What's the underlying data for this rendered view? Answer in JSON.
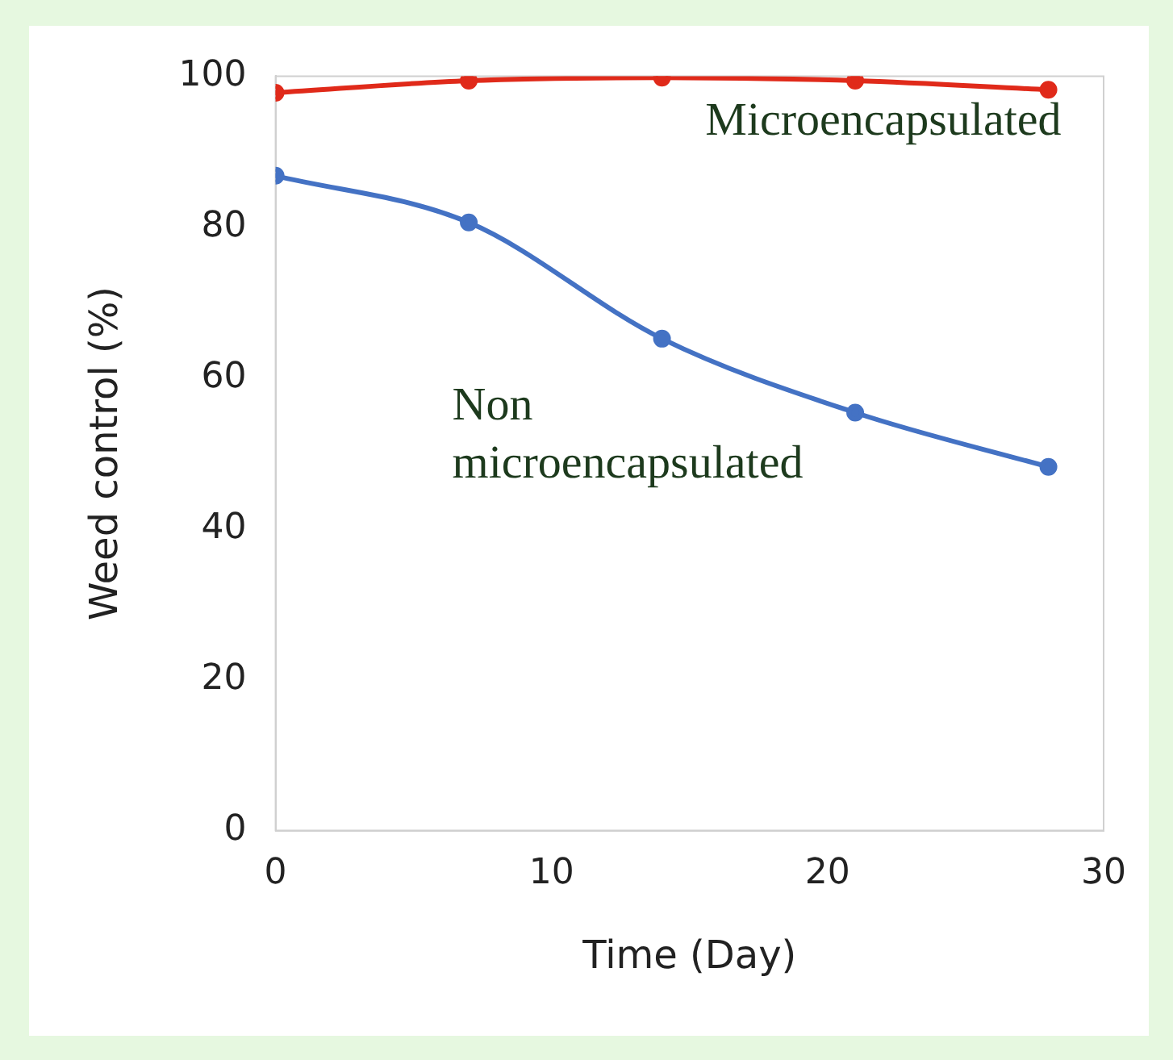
{
  "chart_data": {
    "type": "line",
    "xlabel": "Time (Day)",
    "ylabel": "Weed control (%)",
    "xlim": [
      0,
      30
    ],
    "xticks": [
      0,
      10,
      20,
      30
    ],
    "ylim": [
      0,
      100
    ],
    "yticks": [
      0,
      20,
      40,
      60,
      80,
      100
    ],
    "grid": false,
    "legend": false,
    "marker": "circle",
    "line_style": "solid",
    "series": [
      {
        "name": "Microencapsulated",
        "color": "#e02a1a",
        "x": [
          0,
          7,
          14,
          21,
          28
        ],
        "values": [
          97.8,
          99.4,
          99.8,
          99.4,
          98.2
        ]
      },
      {
        "name": "Non microencapsulated",
        "color": "#4472c4",
        "x": [
          0,
          7,
          14,
          21,
          28
        ],
        "values": [
          86.8,
          80.6,
          65.2,
          55.4,
          48.2
        ]
      }
    ]
  }
}
